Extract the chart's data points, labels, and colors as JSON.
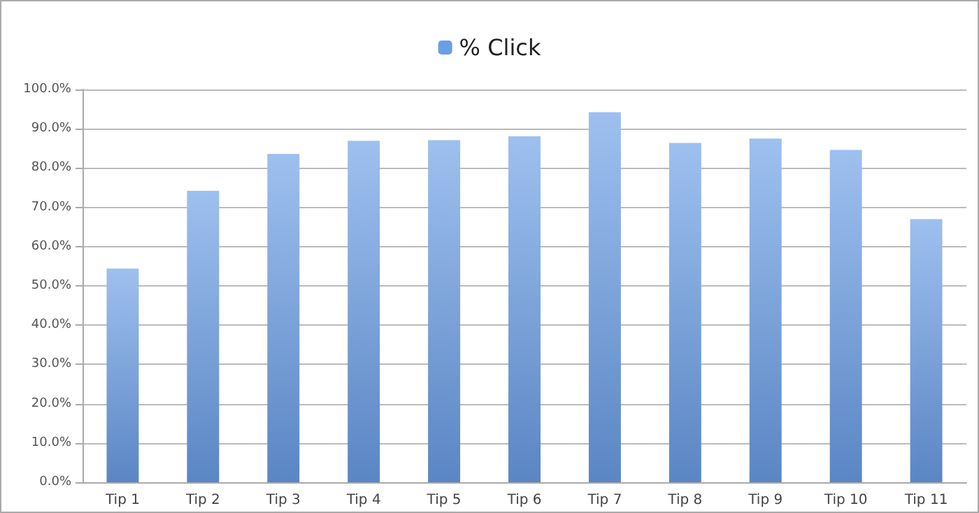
{
  "chart_data": {
    "type": "bar",
    "categories": [
      "Tip 1",
      "Tip 2",
      "Tip 3",
      "Tip 4",
      "Tip 5",
      "Tip 6",
      "Tip 7",
      "Tip 8",
      "Tip 9",
      "Tip 10",
      "Tip 11"
    ],
    "series": [
      {
        "name": "% Click",
        "color": "#6a9ee6",
        "values": [
          54.4,
          74.2,
          83.6,
          86.9,
          87.1,
          88.1,
          94.2,
          86.4,
          87.5,
          84.6,
          67.0
        ]
      }
    ],
    "ylim": [
      0,
      100
    ],
    "yticks": [
      {
        "value": 0,
        "label": "0.0%"
      },
      {
        "value": 10,
        "label": "10.0%"
      },
      {
        "value": 20,
        "label": "20.0%"
      },
      {
        "value": 30,
        "label": "30.0%"
      },
      {
        "value": 40,
        "label": "40.0%"
      },
      {
        "value": 50,
        "label": "50.0%"
      },
      {
        "value": 60,
        "label": "60.0%"
      },
      {
        "value": 70,
        "label": "70.0%"
      },
      {
        "value": 80,
        "label": "80.0%"
      },
      {
        "value": 90,
        "label": "90.0%"
      },
      {
        "value": 100,
        "label": "100.0%"
      }
    ],
    "grid": "y",
    "legend": "top"
  }
}
